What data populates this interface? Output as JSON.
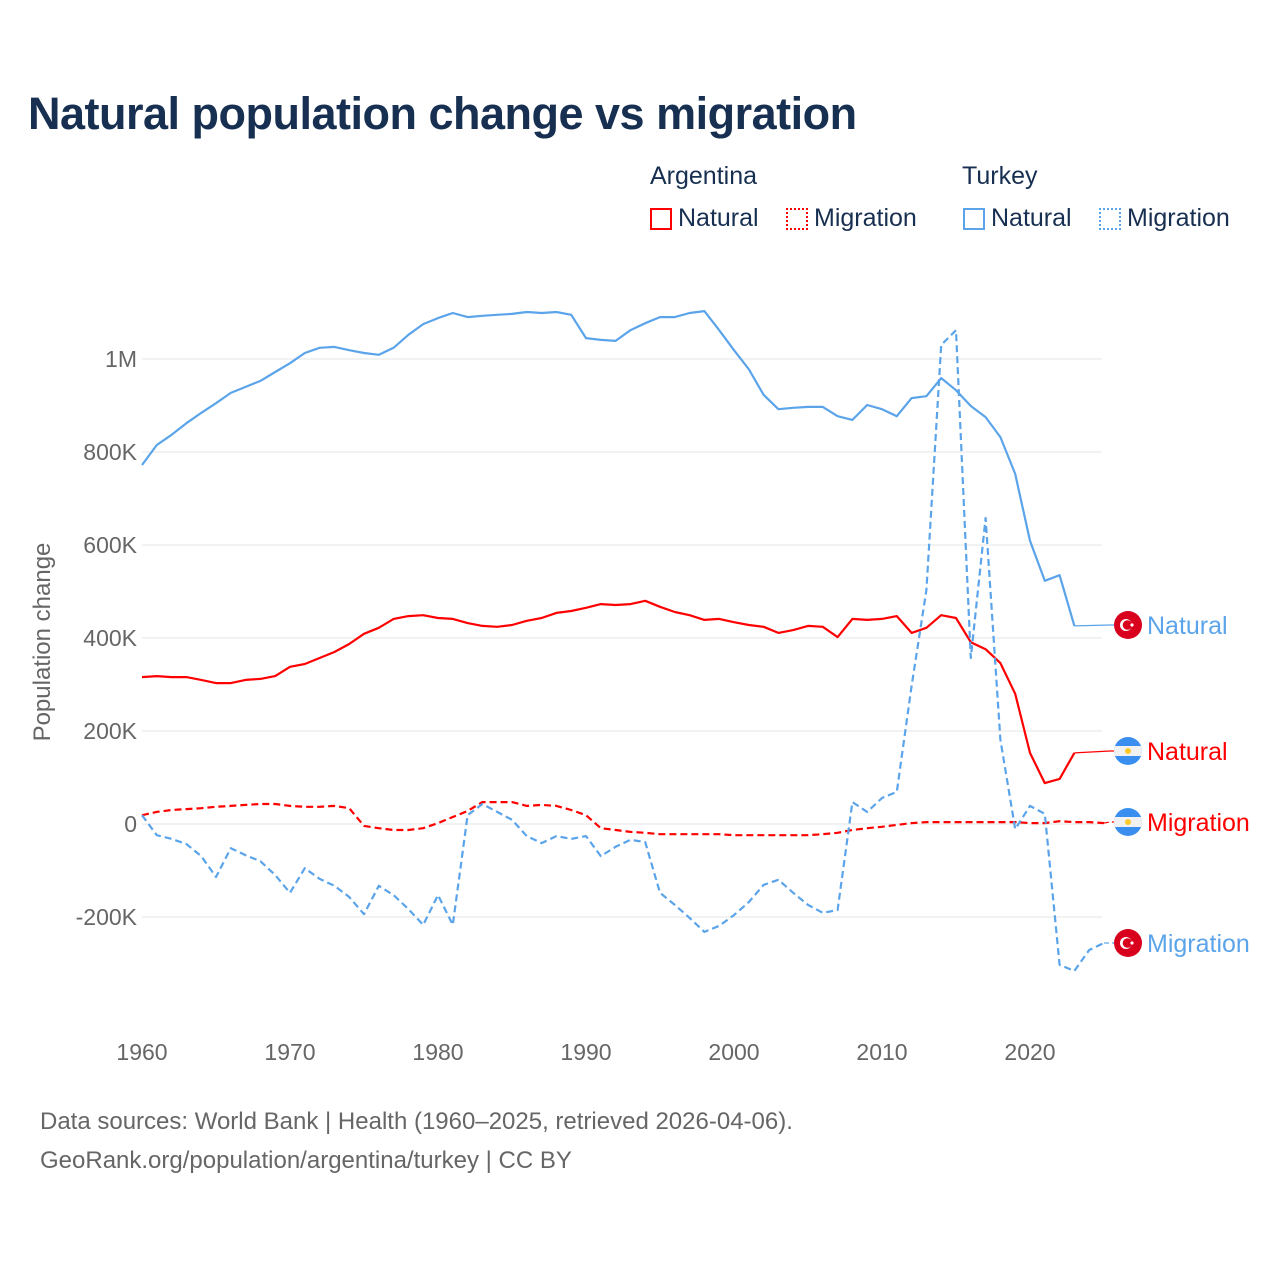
{
  "chart_data": {
    "type": "line",
    "title": "Natural population change vs migration",
    "ylabel": "Population change",
    "xlabel": "",
    "xlim": [
      1960,
      2025
    ],
    "ylim": [
      -330000,
      1150000
    ],
    "grid": true,
    "x_ticks": [
      1960,
      1970,
      1980,
      1990,
      2000,
      2010,
      2020
    ],
    "x_tick_labels": [
      "1960",
      "1970",
      "1980",
      "1990",
      "2000",
      "2010",
      "2020"
    ],
    "y_ticks": [
      -200000,
      0,
      200000,
      400000,
      600000,
      800000,
      1000000
    ],
    "y_tick_labels": [
      "-200K",
      "0",
      "200K",
      "400K",
      "600K",
      "800K",
      "1M"
    ],
    "legend_groups": [
      {
        "country": "Argentina",
        "items": [
          "Natural",
          "Migration"
        ]
      },
      {
        "country": "Turkey",
        "items": [
          "Natural",
          "Migration"
        ]
      }
    ],
    "legend_placement": "top-right",
    "series": [
      {
        "name": "Turkey Natural",
        "country": "Turkey",
        "kind": "Natural",
        "end_label": "Natural",
        "color": "#5ba4ea",
        "dash": false,
        "flag": "turkey-flag",
        "start": 1960,
        "values": [
          772,
          815,
          837,
          862,
          884,
          905,
          927,
          940,
          953,
          972,
          991,
          1013,
          1024,
          1026,
          1019,
          1013,
          1009,
          1024,
          1052,
          1075,
          1088,
          1099,
          1090,
          1093,
          1095,
          1097,
          1101,
          1099,
          1101,
          1095,
          1045,
          1041,
          1039,
          1062,
          1077,
          1090,
          1090,
          1099,
          1103,
          1062,
          1019,
          978,
          923,
          892,
          895,
          897,
          897,
          877,
          869,
          901,
          892,
          877,
          916,
          920,
          959,
          933,
          899,
          875,
          832,
          753,
          609,
          523,
          535,
          426
        ]
      },
      {
        "name": "Argentina Natural",
        "country": "Argentina",
        "kind": "Natural",
        "end_label": "Natural",
        "color": "#ff0000",
        "dash": false,
        "flag": "argentina-flag",
        "start": 1960,
        "values": [
          316,
          318,
          316,
          316,
          310,
          303,
          303,
          310,
          312,
          318,
          338,
          344,
          357,
          370,
          387,
          409,
          422,
          441,
          447,
          449,
          443,
          441,
          432,
          426,
          424,
          428,
          437,
          443,
          454,
          458,
          465,
          473,
          471,
          473,
          480,
          467,
          456,
          449,
          439,
          441,
          434,
          428,
          424,
          411,
          417,
          426,
          424,
          402,
          441,
          439,
          441,
          447,
          411,
          422,
          449,
          443,
          391,
          376,
          346,
          280,
          153,
          88,
          97,
          153
        ]
      },
      {
        "name": "Argentina Migration",
        "country": "Argentina",
        "kind": "Migration",
        "end_label": "Migration",
        "color": "#ff0000",
        "dash": true,
        "flag": "argentina-flag",
        "start": 1960,
        "values": [
          19,
          26,
          30,
          32,
          34,
          37,
          39,
          41,
          43,
          43,
          39,
          37,
          37,
          39,
          34,
          -4,
          -9,
          -13,
          -13,
          -9,
          2,
          15,
          28,
          47,
          47,
          47,
          39,
          41,
          39,
          30,
          19,
          -9,
          -13,
          -17,
          -19,
          -22,
          -22,
          -22,
          -22,
          -22,
          -24,
          -24,
          -24,
          -24,
          -24,
          -24,
          -22,
          -19,
          -13,
          -9,
          -6,
          -2,
          2,
          4,
          4,
          4,
          4,
          4,
          4,
          4,
          2,
          2,
          6,
          4,
          4,
          2
        ]
      },
      {
        "name": "Turkey Migration",
        "country": "Turkey",
        "kind": "Migration",
        "end_label": "Migration",
        "color": "#5ba4ea",
        "dash": true,
        "flag": "turkey-flag",
        "start": 1960,
        "values": [
          19,
          -24,
          -32,
          -43,
          -69,
          -114,
          -52,
          -67,
          -80,
          -110,
          -148,
          -95,
          -118,
          -133,
          -157,
          -194,
          -133,
          -153,
          -183,
          -217,
          -153,
          -217,
          19,
          43,
          26,
          9,
          -26,
          -41,
          -26,
          -32,
          -26,
          -69,
          -49,
          -34,
          -39,
          -148,
          -174,
          -202,
          -232,
          -219,
          -196,
          -168,
          -131,
          -120,
          -148,
          -174,
          -191,
          -185,
          47,
          26,
          56,
          69,
          297,
          503,
          1030,
          1062,
          357,
          658,
          181,
          -11,
          39,
          22,
          -303,
          -316,
          -271,
          -256
        ]
      }
    ],
    "value_unit": "thousands"
  },
  "source_line1": "Data sources: World Bank | Health (1960–2025, retrieved 2026-04-06).",
  "source_line2": "GeoRank.org/population/argentina/turkey | CC BY"
}
